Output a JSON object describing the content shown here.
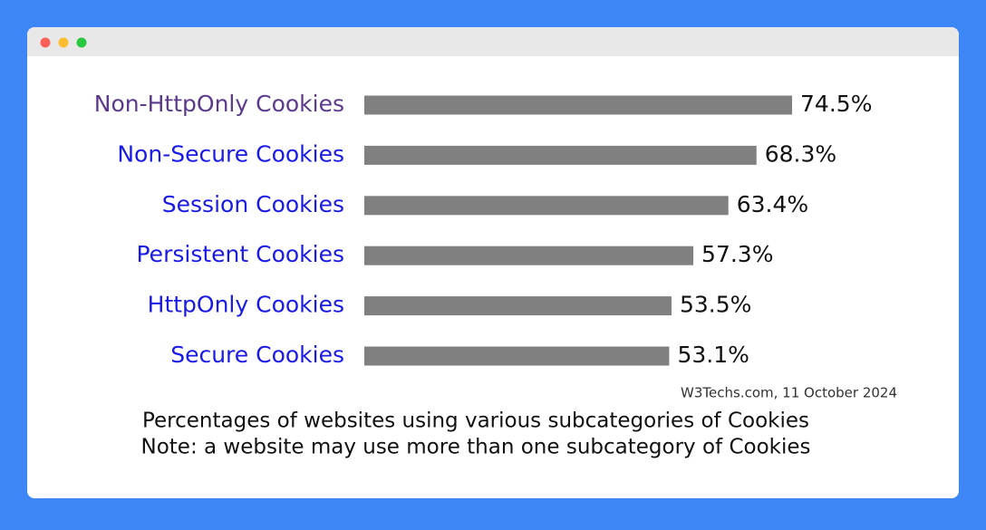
{
  "chart_data": {
    "type": "bar",
    "orientation": "horizontal",
    "categories": [
      "Non-HttpOnly Cookies",
      "Non-Secure Cookies",
      "Session Cookies",
      "Persistent Cookies",
      "HttpOnly Cookies",
      "Secure Cookies"
    ],
    "values": [
      74.5,
      68.3,
      63.4,
      57.3,
      53.5,
      53.1
    ],
    "value_labels": [
      "74.5%",
      "68.3%",
      "63.4%",
      "57.3%",
      "53.5%",
      "53.1%"
    ],
    "color": "#808080",
    "source": "W3Techs.com, 11 October 2024",
    "caption": "Percentages of websites using various subcategories of Cookies",
    "note": "Note: a website may use more than one subcategory of Cookies"
  }
}
